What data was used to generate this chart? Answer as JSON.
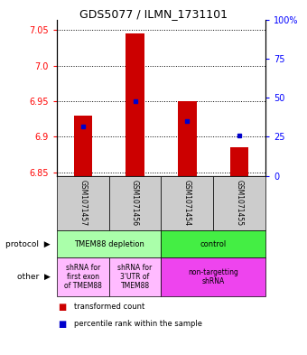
{
  "title": "GDS5077 / ILMN_1731101",
  "samples": [
    "GSM1071457",
    "GSM1071456",
    "GSM1071454",
    "GSM1071455"
  ],
  "red_values": [
    6.93,
    7.045,
    6.95,
    6.885
  ],
  "blue_values": [
    6.915,
    6.95,
    6.922,
    6.902
  ],
  "bar_bottom": 6.845,
  "ylim": [
    6.845,
    7.065
  ],
  "yticks_left": [
    6.85,
    6.9,
    6.95,
    7.0,
    7.05
  ],
  "yticks_right_vals": [
    0,
    25,
    50,
    75,
    100
  ],
  "right_ylim_labels": [
    "0",
    "25",
    "50",
    "75",
    "100%"
  ],
  "bar_color_red": "#cc0000",
  "bar_color_blue": "#0000cc",
  "bg_color": "#ffffff",
  "bar_width": 0.35,
  "title_fontsize": 9.0,
  "proto_depletion_color": "#aaffaa",
  "proto_control_color": "#44ee44",
  "other_pink_light": "#ffbbff",
  "other_pink_bright": "#ee44ee",
  "sample_bg": "#cccccc"
}
